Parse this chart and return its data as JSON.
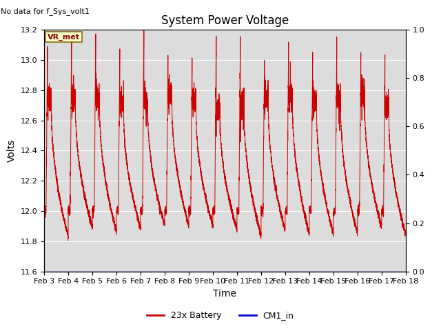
{
  "title": "System Power Voltage",
  "top_left_text": "No data for f_Sys_volt1",
  "ylabel_left": "Volts",
  "xlabel": "Time",
  "ylim_left": [
    11.6,
    13.2
  ],
  "ylim_right": [
    0.0,
    1.0
  ],
  "yticks_left": [
    11.6,
    11.8,
    12.0,
    12.2,
    12.4,
    12.6,
    12.8,
    13.0,
    13.2
  ],
  "yticks_right": [
    0.0,
    0.2,
    0.4,
    0.6,
    0.8,
    1.0
  ],
  "xtick_labels": [
    "Feb 3",
    "Feb 4",
    "Feb 5",
    "Feb 6",
    "Feb 7",
    "Feb 8",
    "Feb 9",
    "Feb 10",
    "Feb 11",
    "Feb 12",
    "Feb 13",
    "Feb 14",
    "Feb 15",
    "Feb 16",
    "Feb 17",
    "Feb 18"
  ],
  "battery_color": "#cc0000",
  "cm1_color": "#0000cc",
  "background_color": "#dcdcdc",
  "vr_met_label": "VR_met",
  "legend_labels": [
    "23x Battery",
    "CM1_in"
  ],
  "title_fontsize": 12,
  "axis_label_fontsize": 10,
  "tick_fontsize": 8
}
